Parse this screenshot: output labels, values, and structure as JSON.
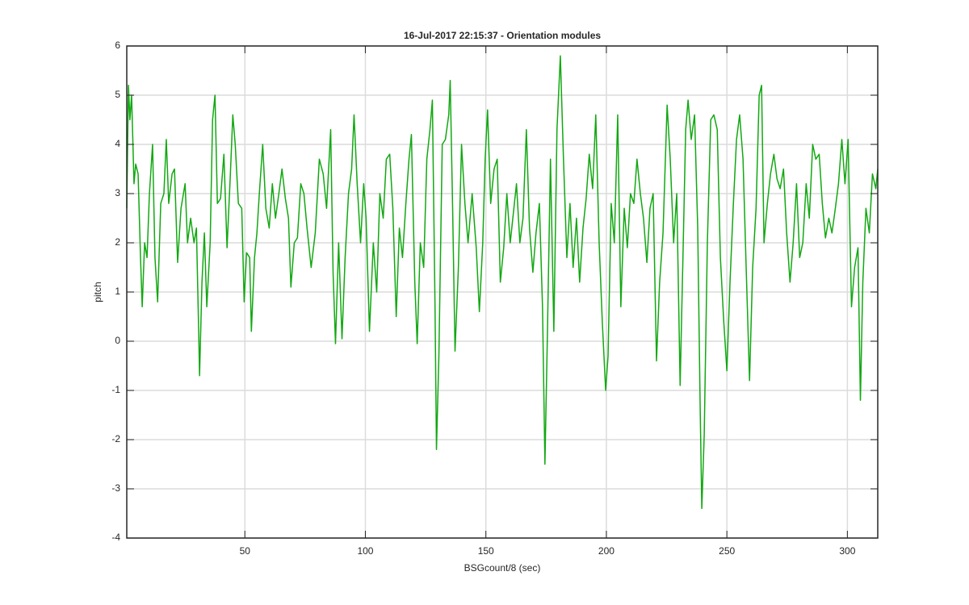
{
  "chart_data": {
    "type": "line",
    "title": "16-Jul-2017 22:15:37 - Orientation modules",
    "xlabel": "BSGcount/8 (sec)",
    "ylabel": "pitch",
    "xlim": [
      1,
      312.6
    ],
    "ylim": [
      -4,
      6
    ],
    "xticks": [
      50,
      100,
      150,
      200,
      250,
      300
    ],
    "yticks": [
      -4,
      -3,
      -2,
      -1,
      0,
      1,
      2,
      3,
      4,
      5,
      6
    ],
    "grid": true,
    "series": [
      {
        "color": "#12a812",
        "x": [
          1,
          1.7,
          2.3,
          3.0,
          4.0,
          4.7,
          5.7,
          6.7,
          7.4,
          8.4,
          9.4,
          10.4,
          11.7,
          12.7,
          13.8,
          15.1,
          16.4,
          17.4,
          18.4,
          19.8,
          20.8,
          22.1,
          23.5,
          25.2,
          26.2,
          27.5,
          28.9,
          29.9,
          30.9,
          31.2,
          32.2,
          33.2,
          34.2,
          35.6,
          36.6,
          37.6,
          38.6,
          39.9,
          41.3,
          42.6,
          43.9,
          45.0,
          46.0,
          47.3,
          48.7,
          49.7,
          50.7,
          52.0,
          52.7,
          54.0,
          55.0,
          56.0,
          57.4,
          58.7,
          60.1,
          61.4,
          62.7,
          64.1,
          65.4,
          66.8,
          68.1,
          69.1,
          70.5,
          71.8,
          73.2,
          74.5,
          75.8,
          77.5,
          79.2,
          80.9,
          82.5,
          83.9,
          85.6,
          86.6,
          87.6,
          88.9,
          90.3,
          91.6,
          93.0,
          94.3,
          95.3,
          96.6,
          98.0,
          99.3,
          100.3,
          101.7,
          103.3,
          104.7,
          106.0,
          107.4,
          108.7,
          110.1,
          111.4,
          112.8,
          114.1,
          115.4,
          116.8,
          118.1,
          119.1,
          120.5,
          121.5,
          122.8,
          124.2,
          125.5,
          126.8,
          127.8,
          128.9,
          129.5,
          130.5,
          131.9,
          133.2,
          134.6,
          135.2,
          136.2,
          137.2,
          138.6,
          139.9,
          141.3,
          142.6,
          144.3,
          146.0,
          147.3,
          148.7,
          149.7,
          150.7,
          152.0,
          153.4,
          154.7,
          156.0,
          157.4,
          158.7,
          160.1,
          161.4,
          162.7,
          164.1,
          165.4,
          166.8,
          168.1,
          169.5,
          170.8,
          172.2,
          173.5,
          174.5,
          175.5,
          176.8,
          178.2,
          179.5,
          180.9,
          182.2,
          183.6,
          184.9,
          186.2,
          187.6,
          188.9,
          190.3,
          191.6,
          192.9,
          194.3,
          195.6,
          197.0,
          198.3,
          199.7,
          200.7,
          202.0,
          203.3,
          204.7,
          206.0,
          207.4,
          208.7,
          210.0,
          211.4,
          212.7,
          214.1,
          215.4,
          216.8,
          218.1,
          219.4,
          220.8,
          222.1,
          223.5,
          225.2,
          226.5,
          227.9,
          229.2,
          230.6,
          231.9,
          232.9,
          233.9,
          235.2,
          236.6,
          237.9,
          238.9,
          239.6,
          240.6,
          241.9,
          243.3,
          244.6,
          246.0,
          247.3,
          248.7,
          250.0,
          251.3,
          252.7,
          254.0,
          255.3,
          256.7,
          258.0,
          259.4,
          260.7,
          262.1,
          263.4,
          264.4,
          265.4,
          266.8,
          268.1,
          269.5,
          270.8,
          272.1,
          273.5,
          274.8,
          276.2,
          277.5,
          278.9,
          280.2,
          281.5,
          282.9,
          284.2,
          285.6,
          286.9,
          288.3,
          289.6,
          290.9,
          292.3,
          293.6,
          295.0,
          296.3,
          297.7,
          299.0,
          300.3,
          301.7,
          303.0,
          304.4,
          305.4,
          306.4,
          307.7,
          309.1,
          310.4,
          311.8,
          312.6
        ],
        "values": [
          2.7,
          5.2,
          4.5,
          5.0,
          3.2,
          3.6,
          3.4,
          1.7,
          0.7,
          2.0,
          1.7,
          3.0,
          4.0,
          1.7,
          0.8,
          2.8,
          3.0,
          4.1,
          2.8,
          3.4,
          3.5,
          1.6,
          2.7,
          3.2,
          2.0,
          2.5,
          2.0,
          2.3,
          0.05,
          -0.7,
          1.2,
          2.2,
          0.7,
          2.0,
          4.5,
          5.0,
          2.8,
          2.9,
          3.8,
          1.9,
          3.3,
          4.6,
          4.0,
          2.8,
          2.7,
          0.8,
          1.8,
          1.7,
          0.2,
          1.7,
          2.2,
          3.0,
          4.0,
          2.7,
          2.3,
          3.2,
          2.5,
          3.0,
          3.5,
          2.9,
          2.5,
          1.1,
          2.0,
          2.1,
          3.2,
          3.0,
          2.3,
          1.5,
          2.2,
          3.7,
          3.4,
          2.7,
          4.3,
          1.4,
          -0.05,
          2.0,
          0.05,
          1.7,
          3.0,
          3.5,
          4.6,
          3.2,
          2.0,
          3.2,
          2.5,
          0.2,
          2.0,
          1.0,
          3.0,
          2.5,
          3.7,
          3.8,
          2.7,
          0.5,
          2.3,
          1.7,
          2.8,
          3.7,
          4.2,
          1.2,
          -0.05,
          2.0,
          1.5,
          3.7,
          4.3,
          4.9,
          0.7,
          -2.2,
          -0.3,
          4.0,
          4.1,
          4.6,
          5.3,
          2.7,
          -0.2,
          1.5,
          4.0,
          2.8,
          2.0,
          3.0,
          1.9,
          0.6,
          2.0,
          3.7,
          4.7,
          2.8,
          3.5,
          3.7,
          1.2,
          1.9,
          3.0,
          2.0,
          2.6,
          3.2,
          2.0,
          2.5,
          4.3,
          2.3,
          1.4,
          2.2,
          2.8,
          0.7,
          -2.5,
          0.05,
          3.7,
          0.2,
          4.3,
          5.8,
          3.7,
          1.7,
          2.8,
          1.5,
          2.5,
          1.2,
          2.3,
          2.9,
          3.8,
          3.1,
          4.6,
          2.0,
          0.4,
          -1.0,
          -0.3,
          2.8,
          2.0,
          4.6,
          0.7,
          2.7,
          1.9,
          3.0,
          2.8,
          3.7,
          3.0,
          2.5,
          1.6,
          2.7,
          3.0,
          -0.4,
          1.2,
          2.2,
          4.8,
          3.7,
          2.0,
          3.0,
          -0.9,
          2.0,
          4.3,
          4.9,
          4.1,
          4.6,
          2.3,
          -1.3,
          -3.4,
          -1.9,
          2.0,
          4.5,
          4.6,
          4.3,
          1.7,
          0.4,
          -0.6,
          1.2,
          2.8,
          4.1,
          4.6,
          3.7,
          1.5,
          -0.8,
          1.5,
          2.7,
          5.0,
          5.2,
          2.0,
          2.8,
          3.4,
          3.8,
          3.3,
          3.1,
          3.5,
          2.2,
          1.2,
          2.0,
          3.2,
          1.7,
          2.0,
          3.2,
          2.5,
          4.0,
          3.7,
          3.8,
          2.8,
          2.1,
          2.5,
          2.2,
          2.7,
          3.2,
          4.1,
          3.2,
          4.1,
          0.7,
          1.5,
          1.9,
          -1.2,
          1.2,
          2.7,
          2.2,
          3.4,
          3.1,
          3.5
        ]
      }
    ]
  }
}
